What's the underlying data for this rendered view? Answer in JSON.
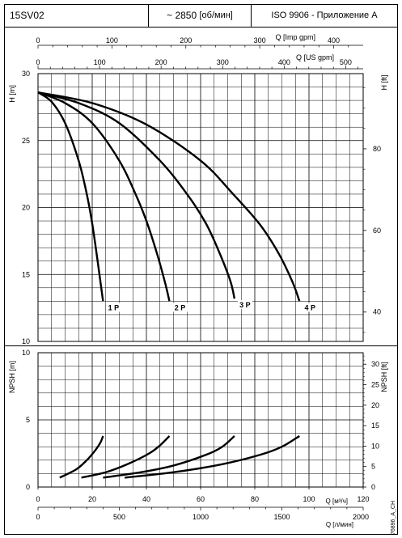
{
  "header": {
    "model": "15SV02",
    "speed": "~ 2850",
    "speed_unit": "[об/мин]",
    "standard": "ISO 9906 - Приложение A"
  },
  "footer_code": "76896_A_CH",
  "chart_data": [
    {
      "type": "line",
      "title": "",
      "xlabel": "Q [м³/ч]",
      "ylabel": "H [m]",
      "ylabel_right": "H [ft]",
      "xlim": [
        0,
        120
      ],
      "ylim": [
        10,
        30
      ],
      "grid": true,
      "x_ticks": [
        0,
        20,
        40,
        60,
        80,
        100,
        120
      ],
      "y_ticks": [
        10,
        15,
        20,
        25,
        30
      ],
      "y_right_ticks": [
        40,
        60,
        80
      ],
      "top_axes": [
        {
          "label": "Q [Imp gpm]",
          "ticks": [
            0,
            100,
            200,
            300,
            400
          ]
        },
        {
          "label": "Q [US gpm]",
          "ticks": [
            0,
            100,
            200,
            300,
            400,
            500
          ]
        }
      ],
      "series": [
        {
          "name": "1 P",
          "x": [
            0,
            5,
            10,
            15,
            18,
            20,
            22,
            23,
            24
          ],
          "y": [
            28.6,
            27.9,
            26.3,
            23.5,
            21.0,
            18.8,
            16.0,
            14.5,
            13.0
          ]
        },
        {
          "name": "2 P",
          "x": [
            0,
            10,
            20,
            30,
            36,
            40,
            44,
            47,
            48.5
          ],
          "y": [
            28.6,
            27.8,
            26.3,
            23.5,
            21.0,
            19.0,
            16.5,
            14.3,
            13.0
          ]
        },
        {
          "name": "3 P",
          "x": [
            0,
            15,
            30,
            45,
            55,
            62,
            67,
            71,
            72.5
          ],
          "y": [
            28.6,
            27.8,
            26.3,
            23.5,
            21.0,
            18.8,
            16.6,
            14.5,
            13.2
          ]
        },
        {
          "name": "4 P",
          "x": [
            0,
            20,
            40,
            60,
            72,
            82,
            89,
            94,
            96.5
          ],
          "y": [
            28.6,
            27.8,
            26.2,
            23.5,
            21.0,
            18.7,
            16.5,
            14.4,
            13.0
          ]
        }
      ],
      "series_labels": [
        "1 P",
        "2 P",
        "3 P",
        "4 P"
      ]
    },
    {
      "type": "line",
      "title": "",
      "xlabel": "Q [м³/ч]",
      "x2label": "Q [л/мин]",
      "ylabel": "NPSH [m]",
      "ylabel_right": "NPSH [ft]",
      "xlim": [
        0,
        120
      ],
      "ylim": [
        0,
        10
      ],
      "grid": true,
      "x_ticks": [
        0,
        20,
        40,
        60,
        80,
        100,
        120
      ],
      "x2_ticks": [
        0,
        500,
        1000,
        1500,
        2000
      ],
      "y_ticks": [
        0,
        5,
        10
      ],
      "y_right_ticks": [
        0,
        5,
        10,
        15,
        20,
        25,
        30
      ],
      "series": [
        {
          "name": "1 P",
          "x": [
            8,
            14,
            18,
            21,
            23,
            24
          ],
          "y": [
            0.7,
            1.3,
            2.0,
            2.7,
            3.3,
            3.8
          ]
        },
        {
          "name": "2 P",
          "x": [
            16,
            25,
            33,
            41,
            45,
            48.5
          ],
          "y": [
            0.7,
            1.1,
            1.7,
            2.5,
            3.1,
            3.8
          ]
        },
        {
          "name": "3 P",
          "x": [
            24,
            38,
            50,
            62,
            68,
            72.5
          ],
          "y": [
            0.7,
            1.1,
            1.6,
            2.4,
            3.0,
            3.8
          ]
        },
        {
          "name": "4 P",
          "x": [
            32,
            50,
            68,
            82,
            90,
            96.5
          ],
          "y": [
            0.7,
            1.1,
            1.7,
            2.4,
            3.0,
            3.8
          ]
        }
      ]
    }
  ]
}
